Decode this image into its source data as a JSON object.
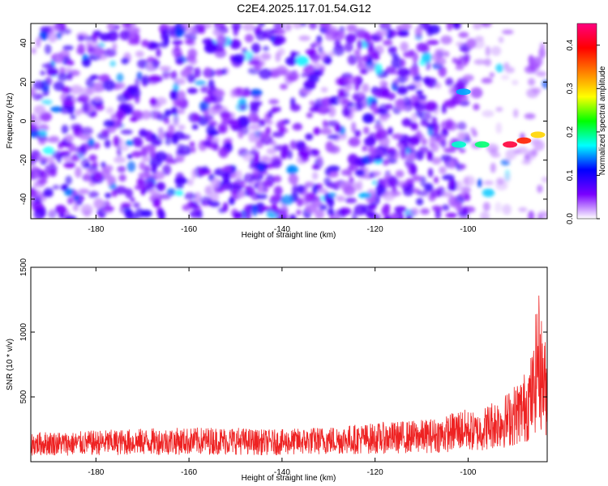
{
  "title": "C2E4.2025.117.01.54.G12",
  "chart_data": [
    {
      "type": "heatmap",
      "xlabel": "Height of straight line (km)",
      "ylabel": "Frequency (Hz)",
      "xlim": [
        -194,
        -83
      ],
      "ylim": [
        -50,
        50
      ],
      "x_ticks": [
        -180,
        -160,
        -140,
        -120,
        -100
      ],
      "y_ticks": [
        -40,
        -20,
        0,
        20,
        40
      ],
      "colorbar": {
        "label": "Normalized spectral amplitude",
        "range": [
          0.0,
          0.45
        ],
        "ticks": [
          0.0,
          0.1,
          0.2,
          0.3,
          0.4
        ],
        "colors": [
          "#ffffff",
          "#7a00ff",
          "#0000ff",
          "#00ffff",
          "#00ff00",
          "#ffff00",
          "#ff8000",
          "#ff0000",
          "#ff0080"
        ]
      },
      "features": [
        {
          "x": -91,
          "y": -12,
          "value": 0.42
        },
        {
          "x": -88,
          "y": -10,
          "value": 0.38
        },
        {
          "x": -85,
          "y": -7,
          "value": 0.3
        },
        {
          "x": -97,
          "y": -12,
          "value": 0.2
        },
        {
          "x": -102,
          "y": -12,
          "value": 0.18
        },
        {
          "x": -101,
          "y": 15,
          "value": 0.15
        }
      ]
    },
    {
      "type": "line",
      "xlabel": "Height of straight line (km)",
      "ylabel": "SNR (10 * v/v)",
      "xlim": [
        -194,
        -83
      ],
      "ylim": [
        0,
        1500
      ],
      "x_ticks": [
        -180,
        -160,
        -140,
        -120,
        -100
      ],
      "y_ticks": [
        500,
        1000,
        1500
      ],
      "series": [
        {
          "color": "#ee2222",
          "x": [
            -194,
            -190,
            -185,
            -180,
            -175,
            -170,
            -165,
            -160,
            -155,
            -150,
            -145,
            -140,
            -135,
            -130,
            -125,
            -120,
            -115,
            -110,
            -105,
            -102,
            -100,
            -98,
            -95,
            -92,
            -90,
            -88,
            -86,
            -85,
            -84,
            -83
          ],
          "y": [
            180,
            190,
            185,
            195,
            200,
            205,
            210,
            210,
            215,
            215,
            200,
            200,
            210,
            220,
            230,
            240,
            250,
            260,
            280,
            330,
            320,
            300,
            380,
            420,
            480,
            550,
            700,
            1100,
            850,
            700
          ]
        }
      ]
    }
  ]
}
